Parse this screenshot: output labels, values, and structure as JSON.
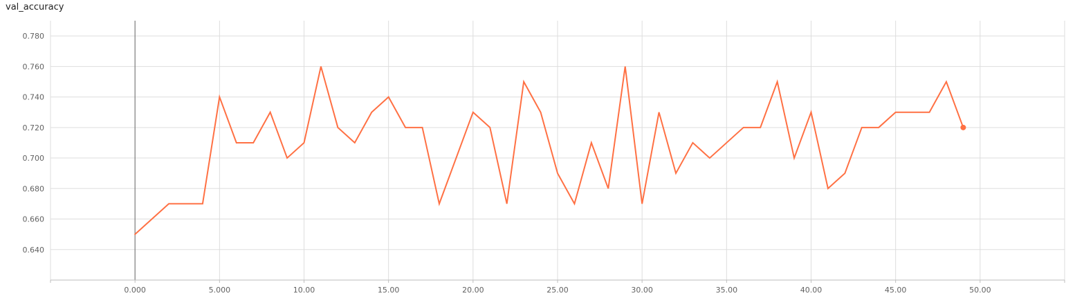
{
  "chart_data": {
    "type": "line",
    "title": "val_accuracy",
    "xlabel": "",
    "ylabel": "",
    "xlim": [
      -5,
      55
    ],
    "ylim": [
      0.62,
      0.79
    ],
    "x_ticks": [
      0,
      5,
      10,
      15,
      20,
      25,
      30,
      35,
      40,
      45,
      50
    ],
    "x_tick_labels": [
      "0.000",
      "5.000",
      "10.00",
      "15.00",
      "20.00",
      "25.00",
      "30.00",
      "35.00",
      "40.00",
      "45.00",
      "50.00"
    ],
    "y_ticks": [
      0.64,
      0.66,
      0.68,
      0.7,
      0.72,
      0.74,
      0.76,
      0.78
    ],
    "y_tick_labels": [
      "0.640",
      "0.660",
      "0.680",
      "0.700",
      "0.720",
      "0.740",
      "0.760",
      "0.780"
    ],
    "grid": true,
    "series": [
      {
        "color": "#ff7043",
        "x": [
          0,
          2,
          3,
          4,
          5,
          6,
          7,
          8,
          9,
          10,
          11,
          12,
          13,
          14,
          15,
          16,
          17,
          18,
          19,
          20,
          21,
          22,
          23,
          24,
          25,
          26,
          27,
          28,
          29,
          30,
          31,
          32,
          33,
          34,
          35,
          36,
          37,
          38,
          39,
          40,
          41,
          42,
          43,
          44,
          45,
          46,
          47,
          48,
          49
        ],
        "y": [
          0.65,
          0.67,
          0.67,
          0.67,
          0.74,
          0.71,
          0.71,
          0.73,
          0.7,
          0.71,
          0.76,
          0.72,
          0.71,
          0.73,
          0.74,
          0.72,
          0.72,
          0.67,
          0.7,
          0.73,
          0.72,
          0.67,
          0.75,
          0.73,
          0.69,
          0.67,
          0.71,
          0.68,
          0.76,
          0.67,
          0.73,
          0.69,
          0.71,
          0.7,
          0.71,
          0.72,
          0.72,
          0.75,
          0.7,
          0.73,
          0.68,
          0.69,
          0.72,
          0.72,
          0.73,
          0.73,
          0.73,
          0.75,
          0.72
        ]
      }
    ]
  }
}
